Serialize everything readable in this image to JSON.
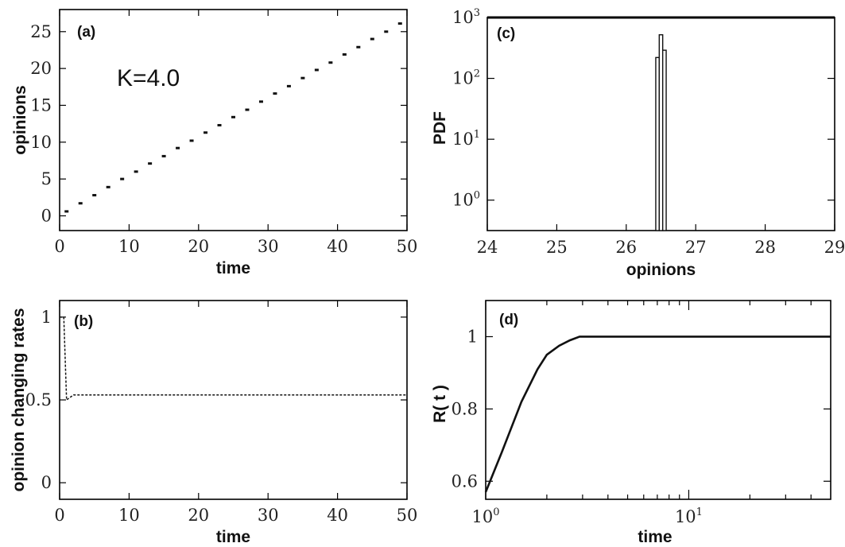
{
  "chart_data": [
    {
      "panel": "(a)",
      "type": "scatter",
      "annotation": "K=4.0",
      "xlabel": "time",
      "ylabel": "opinions",
      "xlim": [
        0,
        50
      ],
      "ylim": [
        -2,
        28
      ],
      "xticks": [
        0,
        10,
        20,
        30,
        40,
        50
      ],
      "yticks": [
        0,
        5,
        10,
        15,
        20,
        25
      ],
      "x": [
        1,
        3,
        5,
        7,
        9,
        11,
        13,
        15,
        17,
        19,
        21,
        23,
        25,
        27,
        29,
        31,
        33,
        35,
        37,
        39,
        41,
        43,
        45,
        47,
        49
      ],
      "y": [
        0.6,
        1.7,
        2.8,
        3.9,
        5.0,
        6.0,
        7.1,
        8.1,
        9.2,
        10.2,
        11.3,
        12.3,
        13.4,
        14.4,
        15.5,
        16.6,
        17.6,
        18.7,
        19.8,
        20.8,
        21.9,
        22.9,
        24.0,
        25.0,
        26.1
      ]
    },
    {
      "panel": "(b)",
      "type": "line",
      "xlabel": "time",
      "ylabel": "opinion changing rates",
      "xlim": [
        0,
        50
      ],
      "ylim": [
        -0.1,
        1.1
      ],
      "xticks": [
        0,
        10,
        20,
        30,
        40,
        50
      ],
      "yticks": [
        "0",
        "0.5",
        "1"
      ],
      "x": [
        0,
        0.6,
        1,
        2,
        5,
        10,
        20,
        30,
        40,
        50
      ],
      "y": [
        1.0,
        1.0,
        0.5,
        0.53,
        0.53,
        0.53,
        0.53,
        0.53,
        0.53,
        0.53
      ]
    },
    {
      "panel": "(c)",
      "type": "bar",
      "xlabel": "opinions",
      "ylabel": "PDF",
      "xlim": [
        24,
        29
      ],
      "ylim_log10": [
        -0.5,
        3
      ],
      "xticks": [
        24,
        25,
        26,
        27,
        28,
        29
      ],
      "yticks": [
        "10",
        "10",
        "10",
        "10"
      ],
      "ytick_exponents": [
        "0",
        "1",
        "2",
        "3"
      ],
      "categories": [
        26.45,
        26.5,
        26.55
      ],
      "values": [
        220,
        520,
        290
      ]
    },
    {
      "panel": "(d)",
      "type": "line",
      "xlabel": "time",
      "ylabel": "R( t )",
      "xscale": "log",
      "xlim": [
        1,
        50
      ],
      "ylim": [
        0.55,
        1.1
      ],
      "xticks": [
        "10",
        "10"
      ],
      "xtick_exponents": [
        "0",
        "1"
      ],
      "yticks": [
        "0.6",
        "0.8",
        "1"
      ],
      "x": [
        1,
        1.2,
        1.5,
        1.8,
        2,
        2.3,
        2.6,
        2.9,
        5,
        10,
        20,
        50
      ],
      "y": [
        0.57,
        0.68,
        0.82,
        0.91,
        0.95,
        0.975,
        0.99,
        1.0,
        1.0,
        1.0,
        1.0,
        1.0
      ]
    }
  ]
}
